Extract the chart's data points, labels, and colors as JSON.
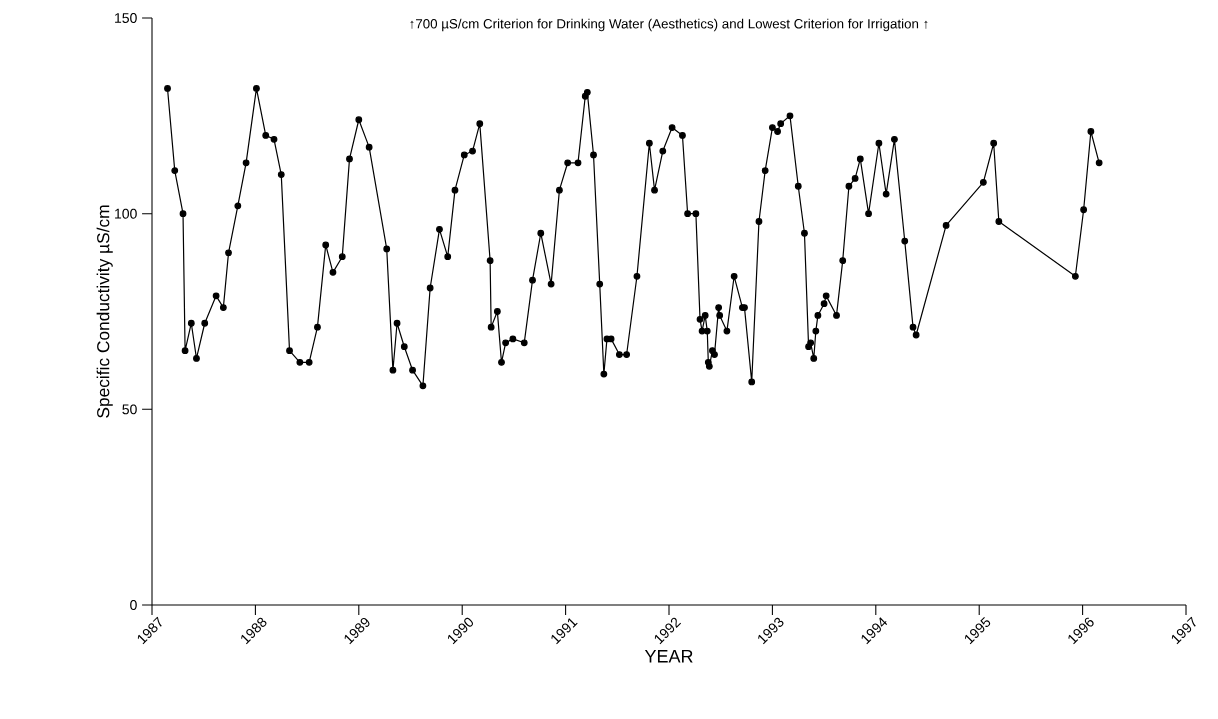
{
  "chart_data": {
    "type": "line",
    "title": "↑700 µS/cm Criterion for Drinking Water (Aesthetics) and Lowest Criterion for Irrigation ↑",
    "xlabel": "YEAR",
    "ylabel": "Specific Conductivity µS/cm",
    "x": [
      1987.15,
      1987.22,
      1987.3,
      1987.32,
      1987.38,
      1987.43,
      1987.51,
      1987.62,
      1987.69,
      1987.74,
      1987.83,
      1987.91,
      1988.01,
      1988.1,
      1988.18,
      1988.25,
      1988.33,
      1988.43,
      1988.52,
      1988.6,
      1988.68,
      1988.75,
      1988.84,
      1988.91,
      1989.0,
      1989.1,
      1989.27,
      1989.33,
      1989.37,
      1989.44,
      1989.52,
      1989.62,
      1989.69,
      1989.78,
      1989.86,
      1989.93,
      1990.02,
      1990.1,
      1990.17,
      1990.27,
      1990.28,
      1990.34,
      1990.38,
      1990.42,
      1990.49,
      1990.6,
      1990.68,
      1990.76,
      1990.86,
      1990.94,
      1991.02,
      1991.12,
      1991.19,
      1991.21,
      1991.27,
      1991.33,
      1991.37,
      1991.4,
      1991.44,
      1991.52,
      1991.59,
      1991.69,
      1991.81,
      1991.86,
      1991.94,
      1992.03,
      1992.13,
      1992.18,
      1992.26,
      1992.3,
      1992.32,
      1992.35,
      1992.37,
      1992.38,
      1992.39,
      1992.42,
      1992.44,
      1992.48,
      1992.49,
      1992.56,
      1992.63,
      1992.71,
      1992.73,
      1992.8,
      1992.87,
      1992.93,
      1993.0,
      1993.05,
      1993.08,
      1993.17,
      1993.25,
      1993.31,
      1993.35,
      1993.37,
      1993.4,
      1993.42,
      1993.44,
      1993.5,
      1993.52,
      1993.62,
      1993.68,
      1993.74,
      1993.8,
      1993.85,
      1993.93,
      1994.03,
      1994.1,
      1994.18,
      1994.28,
      1994.36,
      1994.39,
      1994.68,
      1995.04,
      1995.14,
      1995.19,
      1995.93,
      1996.01,
      1996.08,
      1996.16
    ],
    "series": [
      {
        "color": "#000000",
        "values": [
          132,
          111,
          100,
          65,
          72,
          63,
          72,
          79,
          76,
          90,
          102,
          113,
          132,
          120,
          119,
          110,
          65,
          62,
          62,
          71,
          92,
          85,
          89,
          114,
          124,
          117,
          91,
          60,
          72,
          66,
          60,
          56,
          81,
          96,
          89,
          106,
          115,
          116,
          123,
          88,
          71,
          75,
          62,
          67,
          68,
          67,
          83,
          95,
          82,
          106,
          113,
          113,
          130,
          131,
          115,
          82,
          59,
          68,
          68,
          64,
          64,
          84,
          118,
          106,
          116,
          122,
          120,
          100,
          100,
          73,
          70,
          74,
          70,
          62,
          61,
          65,
          64,
          76,
          74,
          70,
          84,
          76,
          76,
          57,
          98,
          111,
          122,
          121,
          123,
          125,
          107,
          95,
          66,
          67,
          63,
          70,
          74,
          77,
          79,
          74,
          88,
          107,
          109,
          114,
          100,
          118,
          105,
          119,
          93,
          71,
          69,
          97,
          108,
          118,
          98,
          84,
          101,
          121,
          113
        ]
      }
    ],
    "xlim": [
      1987,
      1997
    ],
    "xticks": [
      1987,
      1988,
      1989,
      1990,
      1991,
      1992,
      1993,
      1994,
      1995,
      1996,
      1997
    ],
    "ylim": [
      0,
      150
    ],
    "yticks": [
      0,
      50,
      100,
      150
    ],
    "grid": false,
    "marker": "circle",
    "line_style": "solid"
  }
}
